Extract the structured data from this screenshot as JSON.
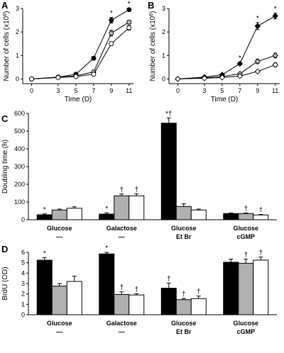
{
  "chart_data": [
    {
      "panel": "A",
      "type": "line",
      "xlabel": "Time (D)",
      "ylabel": "Number of cells (x10",
      "ylabel_sup": "6",
      "ylabel_end": ")",
      "x": [
        0,
        3,
        5,
        7,
        9,
        11
      ],
      "xlim": [
        -1,
        11.5
      ],
      "ylim": [
        -0.2,
        3
      ],
      "yticks": [
        0,
        1,
        2,
        3
      ],
      "series": [
        {
          "marker": "filled-circle",
          "values": [
            0,
            0.08,
            0.2,
            0.88,
            2.5,
            2.95
          ],
          "errors": [
            0,
            0.02,
            0.04,
            0.08,
            0.12,
            0.06
          ]
        },
        {
          "marker": "gray-circle",
          "values": [
            0,
            0.07,
            0.13,
            0.3,
            1.95,
            2.42
          ],
          "errors": [
            0,
            0.02,
            0.03,
            0.05,
            0.12,
            0.08
          ]
        },
        {
          "marker": "open-circle",
          "values": [
            0,
            0.06,
            0.1,
            0.2,
            1.5,
            2.18
          ],
          "errors": [
            0,
            0.02,
            0.03,
            0.04,
            0.08,
            0.1
          ]
        }
      ],
      "annotations": [
        {
          "x": 9,
          "series": 0,
          "text": "*"
        },
        {
          "x": 11,
          "series": 0,
          "text": "*"
        }
      ]
    },
    {
      "panel": "B",
      "type": "line",
      "xlabel": "Time (D)",
      "ylabel": "Number of cells (x10",
      "ylabel_sup": "6",
      "ylabel_end": ")",
      "x": [
        0,
        3,
        5,
        7,
        9,
        11
      ],
      "xlim": [
        -1,
        11.5
      ],
      "ylim": [
        -0.2,
        3
      ],
      "yticks": [
        0,
        1,
        2,
        3
      ],
      "series": [
        {
          "marker": "filled-diamond",
          "values": [
            0,
            0.08,
            0.18,
            0.65,
            2.25,
            2.68
          ],
          "errors": [
            0,
            0.02,
            0.03,
            0.06,
            0.15,
            0.12
          ]
        },
        {
          "marker": "gray-diamond",
          "values": [
            0,
            0.05,
            0.1,
            0.22,
            0.75,
            1.0
          ],
          "errors": [
            0,
            0.02,
            0.02,
            0.04,
            0.1,
            0.1
          ]
        },
        {
          "marker": "open-diamond",
          "values": [
            0,
            0.03,
            0.06,
            0.12,
            0.32,
            0.6
          ],
          "errors": [
            0,
            0.01,
            0.02,
            0.03,
            0.05,
            0.08
          ]
        }
      ],
      "annotations": [
        {
          "x": 7,
          "series": 0,
          "text": "*"
        },
        {
          "x": 9,
          "series": 0,
          "text": "*"
        },
        {
          "x": 11,
          "series": 0,
          "text": "*"
        }
      ]
    },
    {
      "panel": "C",
      "type": "bar",
      "ylabel": "Doubling time (h)",
      "ylim": [
        0,
        600
      ],
      "yticks": [
        0,
        100,
        200,
        300,
        400,
        500,
        600
      ],
      "categories": [
        {
          "line1": "Glucose",
          "line2": "—"
        },
        {
          "line1": "Galactose",
          "line2": "—"
        },
        {
          "line1": "Glucose",
          "line2": "Et Br"
        },
        {
          "line1": "Glucose",
          "line2": "cGMP"
        }
      ],
      "bar_colors": [
        "#000000",
        "#b0b0b0",
        "#ffffff"
      ],
      "series": [
        {
          "values": [
            28,
            32,
            545,
            35
          ],
          "errors": [
            5,
            7,
            30,
            3
          ],
          "marks": [
            "*",
            "*",
            "*†",
            ""
          ]
        },
        {
          "values": [
            55,
            135,
            75,
            35
          ],
          "errors": [
            5,
            10,
            15,
            3
          ],
          "marks": [
            "",
            "†",
            "",
            "†"
          ]
        },
        {
          "values": [
            65,
            135,
            55,
            27
          ],
          "errors": [
            8,
            12,
            5,
            3
          ],
          "marks": [
            "",
            "†",
            "",
            "†"
          ]
        }
      ]
    },
    {
      "panel": "D",
      "type": "bar",
      "ylabel": "BrdU (OD)",
      "ylim": [
        0,
        6
      ],
      "yticks": [
        0,
        1,
        2,
        3,
        4,
        5,
        6
      ],
      "categories": [
        {
          "line1": "Glucose",
          "line2": "—"
        },
        {
          "line1": "Galactose",
          "line2": "—"
        },
        {
          "line1": "Glucose",
          "line2": "Et Br"
        },
        {
          "line1": "Glucose",
          "line2": "cGMP"
        }
      ],
      "bar_colors": [
        "#000000",
        "#b0b0b0",
        "#ffffff"
      ],
      "series": [
        {
          "values": [
            5.25,
            5.85,
            2.55,
            5.05
          ],
          "errors": [
            0.25,
            0.15,
            0.5,
            0.3
          ],
          "marks": [
            "*",
            "*",
            "†",
            ""
          ]
        },
        {
          "values": [
            2.75,
            1.95,
            1.45,
            4.95
          ],
          "errors": [
            0.25,
            0.25,
            0.12,
            0.4
          ],
          "marks": [
            "",
            "†",
            "†",
            "†"
          ]
        },
        {
          "values": [
            3.2,
            1.9,
            1.55,
            5.25
          ],
          "errors": [
            0.5,
            0.12,
            0.25,
            0.3
          ],
          "marks": [
            "",
            "†",
            "†",
            "†"
          ]
        }
      ]
    }
  ]
}
